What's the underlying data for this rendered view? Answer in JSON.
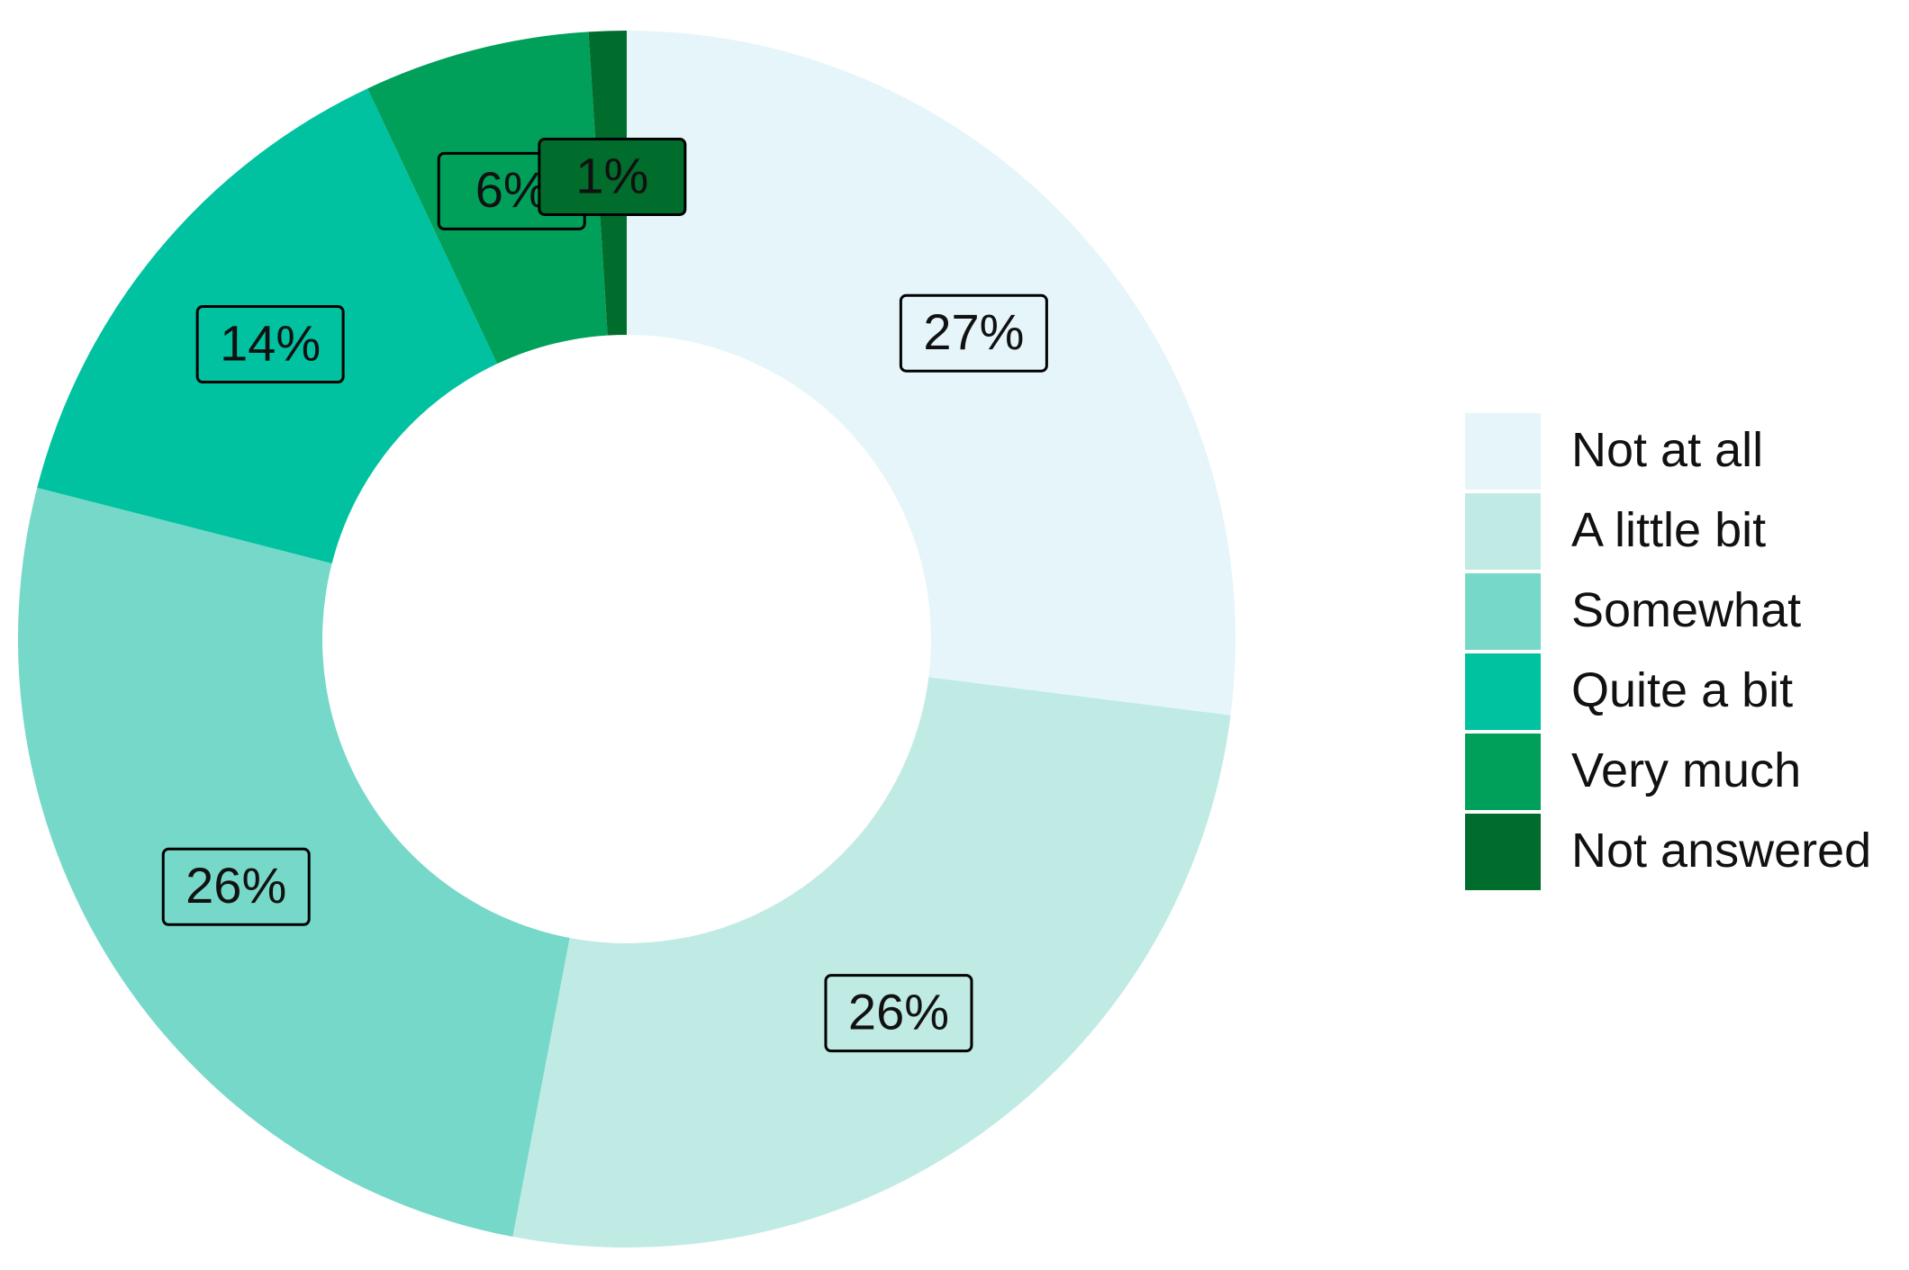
{
  "chart_data": {
    "type": "donut",
    "categories": [
      "Not at all",
      "A little bit",
      "Somewhat",
      "Quite a bit",
      "Very much",
      "Not answered"
    ],
    "values": [
      27,
      26,
      26,
      14,
      6,
      1
    ],
    "value_labels": [
      "27%",
      "26%",
      "26%",
      "14%",
      "6%",
      "1%"
    ],
    "colors": [
      "#e5f5f9",
      "#c0ebe4",
      "#76d8c8",
      "#00c2a0",
      "#00a05a",
      "#006d2c"
    ],
    "legend": "right"
  }
}
